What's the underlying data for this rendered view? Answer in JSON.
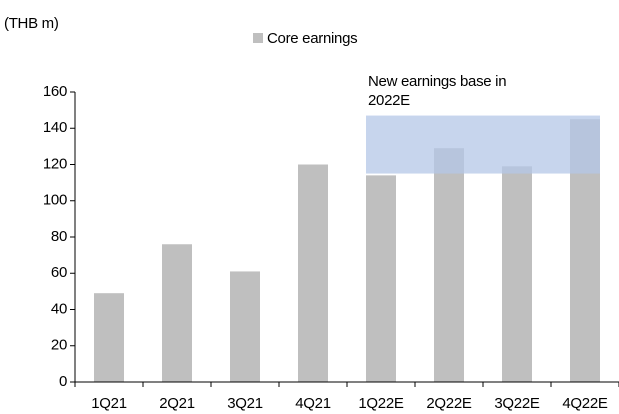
{
  "chart_data": {
    "type": "bar",
    "unit_label": "(THB m)",
    "categories": [
      "1Q21",
      "2Q21",
      "3Q21",
      "4Q21",
      "1Q22E",
      "2Q22E",
      "3Q22E",
      "4Q22E"
    ],
    "series": [
      {
        "name": "Core earnings",
        "color": "#bfbfbf",
        "values": [
          49,
          76,
          61,
          120,
          114,
          129,
          119,
          145
        ]
      }
    ],
    "ylim": [
      0,
      160
    ],
    "yticks": [
      0,
      20,
      40,
      60,
      80,
      100,
      120,
      140,
      160
    ],
    "annotation": {
      "text": "New earnings base in 2022E",
      "range": [
        115,
        147
      ],
      "color": "#b4c7e7"
    }
  }
}
